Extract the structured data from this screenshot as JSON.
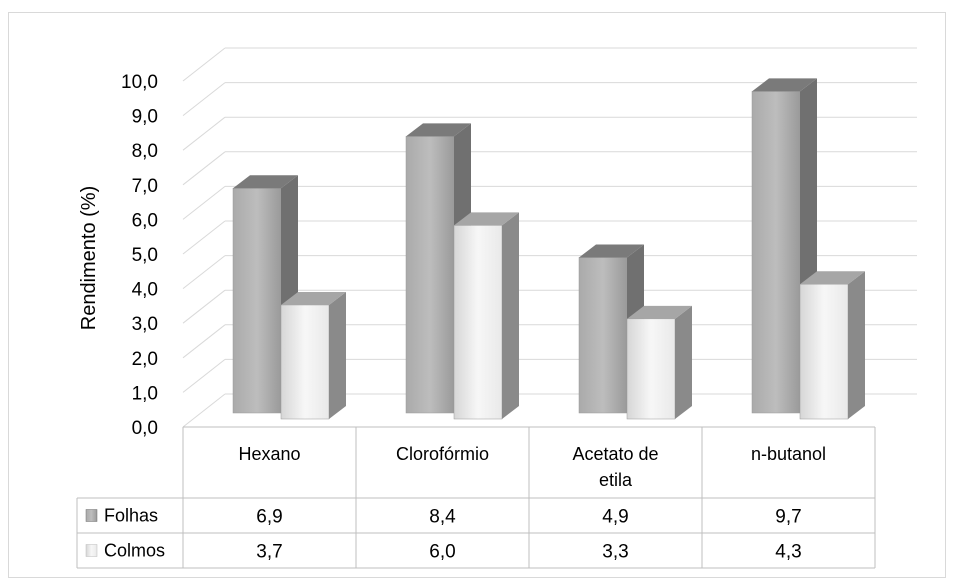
{
  "chart_data": {
    "type": "bar",
    "variant": "3d-clustered-column-with-data-table",
    "categories": [
      "Hexano",
      "Clorofórmio",
      "Acetato de etila",
      "n-butanol"
    ],
    "series": [
      {
        "name": "Folhas",
        "values": [
          6.9,
          8.4,
          4.9,
          9.7
        ],
        "labels": [
          "6,9",
          "8,4",
          "4,9",
          "9,7"
        ],
        "color": "#8c8c8c"
      },
      {
        "name": "Colmos",
        "values": [
          3.7,
          6.0,
          3.3,
          4.3
        ],
        "labels": [
          "3,7",
          "6,0",
          "3,3",
          "4,3"
        ],
        "color": "#e6e6e6"
      }
    ],
    "ylabel": "Rendimento (%)",
    "xlabel": "",
    "title": "",
    "ylim": [
      0,
      10
    ],
    "yticks": [
      "0,0",
      "1,0",
      "2,0",
      "3,0",
      "4,0",
      "5,0",
      "6,0",
      "7,0",
      "8,0",
      "9,0",
      "10,0"
    ],
    "grid": true,
    "legend": "data-table"
  }
}
